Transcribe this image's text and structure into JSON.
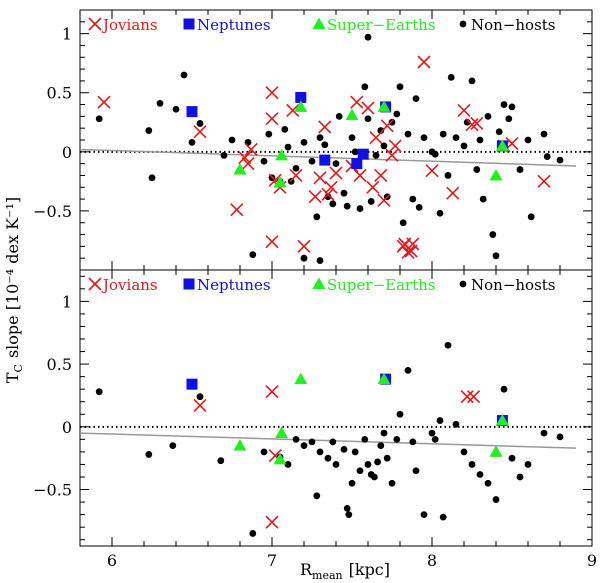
{
  "chart_data": {
    "type": "scatter",
    "xlabel": "R",
    "xlabel_sub": "mean",
    "xlabel_unit": "[kpc]",
    "ylabel": "T",
    "ylabel_sub": "C",
    "ylabel_unit": "slope [10⁻⁴ dex K⁻¹]",
    "xlim": [
      5.8,
      9.0
    ],
    "xticks": [
      "6",
      "7",
      "8",
      "9"
    ],
    "xtick_values": [
      6,
      7,
      8,
      9
    ],
    "colors": {
      "jovian": "#e31a1c",
      "neptune": "#1010e0",
      "superearth": "#22ee22",
      "nonhost": "#000000",
      "fit": "#999999"
    },
    "legend": [
      {
        "name": "Jovians",
        "marker": "cross",
        "color": "#e31a1c"
      },
      {
        "name": "Neptunes",
        "marker": "square",
        "color": "#1010e0"
      },
      {
        "name": "Super−Earths",
        "marker": "triangle",
        "color": "#22ee22"
      },
      {
        "name": "Non−hosts",
        "marker": "circle",
        "color": "#000000"
      }
    ],
    "panels": [
      {
        "name": "top",
        "ylim": [
          -1.0,
          1.2
        ],
        "yticks": [
          "1",
          "0.5",
          "0",
          "−0.5"
        ],
        "ytick_values": [
          1,
          0.5,
          0,
          -0.5
        ],
        "zero_line": 0,
        "fit_line": {
          "x": [
            5.8,
            8.9
          ],
          "y": [
            0.02,
            -0.12
          ]
        },
        "series": [
          {
            "name": "Jovians",
            "points": [
              [
                5.95,
                0.42
              ],
              [
                6.55,
                0.17
              ],
              [
                6.78,
                -0.49
              ],
              [
                6.83,
                -0.05
              ],
              [
                6.85,
                -0.1
              ],
              [
                6.87,
                0.02
              ],
              [
                7.0,
                0.5
              ],
              [
                7.0,
                0.28
              ],
              [
                7.0,
                -0.76
              ],
              [
                7.02,
                -0.24
              ],
              [
                7.05,
                -0.3
              ],
              [
                7.13,
                0.35
              ],
              [
                7.15,
                -0.2
              ],
              [
                7.2,
                -0.8
              ],
              [
                7.27,
                -0.38
              ],
              [
                7.3,
                -0.22
              ],
              [
                7.33,
                0.21
              ],
              [
                7.35,
                -0.36
              ],
              [
                7.37,
                -0.3
              ],
              [
                7.4,
                -0.18
              ],
              [
                7.5,
                -0.12
              ],
              [
                7.53,
                0.42
              ],
              [
                7.55,
                -0.2
              ],
              [
                7.6,
                0.37
              ],
              [
                7.63,
                -0.3
              ],
              [
                7.65,
                0.12
              ],
              [
                7.68,
                -0.2
              ],
              [
                7.7,
                -0.41
              ],
              [
                7.72,
                0.22
              ],
              [
                7.75,
                -0.03
              ],
              [
                7.77,
                0.05
              ],
              [
                7.82,
                -0.8
              ],
              [
                7.83,
                -0.78
              ],
              [
                7.85,
                -0.85
              ],
              [
                7.87,
                -0.84
              ],
              [
                7.88,
                -0.78
              ],
              [
                7.95,
                0.76
              ],
              [
                8.0,
                -0.16
              ],
              [
                8.13,
                -0.35
              ],
              [
                8.2,
                0.35
              ],
              [
                8.25,
                0.23
              ],
              [
                8.28,
                0.24
              ],
              [
                8.45,
                0.05
              ],
              [
                8.5,
                0.07
              ],
              [
                8.7,
                -0.25
              ]
            ]
          },
          {
            "name": "Neptunes",
            "points": [
              [
                6.5,
                0.34
              ],
              [
                7.18,
                0.46
              ],
              [
                7.33,
                -0.07
              ],
              [
                7.53,
                -0.1
              ],
              [
                7.57,
                -0.02
              ],
              [
                7.71,
                0.38
              ],
              [
                8.44,
                0.05
              ]
            ]
          },
          {
            "name": "Super−Earths",
            "points": [
              [
                6.8,
                -0.15
              ],
              [
                7.06,
                -0.03
              ],
              [
                7.05,
                -0.26
              ],
              [
                7.18,
                0.38
              ],
              [
                7.5,
                0.31
              ],
              [
                7.7,
                0.38
              ],
              [
                8.4,
                -0.2
              ],
              [
                8.44,
                0.05
              ]
            ]
          },
          {
            "name": "Non−hosts",
            "points": [
              [
                5.92,
                0.28
              ],
              [
                6.23,
                0.18
              ],
              [
                6.25,
                -0.22
              ],
              [
                6.3,
                0.41
              ],
              [
                6.4,
                0.36
              ],
              [
                6.45,
                0.65
              ],
              [
                6.5,
                0.08
              ],
              [
                6.55,
                0.24
              ],
              [
                6.7,
                -0.03
              ],
              [
                6.75,
                0.1
              ],
              [
                6.85,
                0.08
              ],
              [
                6.88,
                -0.87
              ],
              [
                6.95,
                -0.08
              ],
              [
                6.98,
                0.15
              ],
              [
                7.0,
                -0.22
              ],
              [
                7.05,
                -0.25
              ],
              [
                7.08,
                0.19
              ],
              [
                7.1,
                0.04
              ],
              [
                7.12,
                -0.25
              ],
              [
                7.15,
                -0.14
              ],
              [
                7.2,
                -0.9
              ],
              [
                7.2,
                0.08
              ],
              [
                7.25,
                -0.08
              ],
              [
                7.28,
                -0.55
              ],
              [
                7.3,
                -0.92
              ],
              [
                7.3,
                0.12
              ],
              [
                7.33,
                0.06
              ],
              [
                7.35,
                -0.38
              ],
              [
                7.38,
                -0.44
              ],
              [
                7.4,
                -0.1
              ],
              [
                7.42,
                0.3
              ],
              [
                7.45,
                -0.35
              ],
              [
                7.47,
                -0.46
              ],
              [
                7.5,
                0.12
              ],
              [
                7.52,
                0.0
              ],
              [
                7.55,
                -0.48
              ],
              [
                7.58,
                0.55
              ],
              [
                7.6,
                0.97
              ],
              [
                7.6,
                0.28
              ],
              [
                7.62,
                -0.42
              ],
              [
                7.65,
                -0.03
              ],
              [
                7.68,
                0.18
              ],
              [
                7.7,
                0.05
              ],
              [
                7.72,
                -0.38
              ],
              [
                7.75,
                0.25
              ],
              [
                7.78,
                0.32
              ],
              [
                7.8,
                0.55
              ],
              [
                7.82,
                -0.6
              ],
              [
                7.85,
                0.15
              ],
              [
                7.88,
                -0.4
              ],
              [
                7.9,
                0.45
              ],
              [
                7.92,
                -0.47
              ],
              [
                7.95,
                0.12
              ],
              [
                8.0,
                0.0
              ],
              [
                8.02,
                -0.02
              ],
              [
                8.05,
                -0.52
              ],
              [
                8.07,
                0.15
              ],
              [
                8.1,
                -0.2
              ],
              [
                8.12,
                0.63
              ],
              [
                8.15,
                0.12
              ],
              [
                8.2,
                0.05
              ],
              [
                8.22,
                0.25
              ],
              [
                8.25,
                0.6
              ],
              [
                8.28,
                -0.15
              ],
              [
                8.3,
                0.1
              ],
              [
                8.32,
                -0.4
              ],
              [
                8.35,
                0.3
              ],
              [
                8.38,
                -0.7
              ],
              [
                8.4,
                -0.88
              ],
              [
                8.42,
                0.17
              ],
              [
                8.45,
                0.4
              ],
              [
                8.48,
                0.28
              ],
              [
                8.5,
                0.38
              ],
              [
                8.55,
                -0.15
              ],
              [
                8.6,
                0.1
              ],
              [
                8.62,
                -0.55
              ],
              [
                8.7,
                0.15
              ],
              [
                8.72,
                -0.04
              ],
              [
                8.8,
                -0.07
              ]
            ]
          }
        ]
      },
      {
        "name": "bottom",
        "ylim": [
          -0.95,
          1.25
        ],
        "yticks": [
          "1",
          "0.5",
          "0",
          "−0.5"
        ],
        "ytick_values": [
          1,
          0.5,
          0,
          -0.5
        ],
        "zero_line": 0,
        "fit_line": {
          "x": [
            5.8,
            8.9
          ],
          "y": [
            -0.05,
            -0.17
          ]
        },
        "series": [
          {
            "name": "Jovians",
            "points": [
              [
                6.55,
                0.17
              ],
              [
                7.0,
                0.28
              ],
              [
                7.02,
                -0.23
              ],
              [
                7.0,
                -0.76
              ],
              [
                8.22,
                0.24
              ],
              [
                8.26,
                0.24
              ]
            ]
          },
          {
            "name": "Neptunes",
            "points": [
              [
                6.5,
                0.34
              ],
              [
                7.71,
                0.38
              ],
              [
                8.44,
                0.05
              ]
            ]
          },
          {
            "name": "Super−Earths",
            "points": [
              [
                6.8,
                -0.15
              ],
              [
                7.06,
                -0.05
              ],
              [
                7.05,
                -0.26
              ],
              [
                7.18,
                0.38
              ],
              [
                7.7,
                0.38
              ],
              [
                8.4,
                -0.2
              ],
              [
                8.44,
                0.05
              ]
            ]
          },
          {
            "name": "Non−hosts",
            "points": [
              [
                5.92,
                0.28
              ],
              [
                6.23,
                -0.22
              ],
              [
                6.38,
                -0.15
              ],
              [
                6.55,
                0.24
              ],
              [
                6.68,
                -0.27
              ],
              [
                6.88,
                -0.85
              ],
              [
                6.95,
                -0.2
              ],
              [
                7.05,
                -0.24
              ],
              [
                7.1,
                -0.3
              ],
              [
                7.15,
                -0.1
              ],
              [
                7.2,
                -0.15
              ],
              [
                7.25,
                -0.12
              ],
              [
                7.28,
                -0.55
              ],
              [
                7.3,
                -0.2
              ],
              [
                7.35,
                -0.25
              ],
              [
                7.38,
                -0.12
              ],
              [
                7.4,
                -0.3
              ],
              [
                7.45,
                -0.18
              ],
              [
                7.47,
                -0.65
              ],
              [
                7.48,
                -0.7
              ],
              [
                7.5,
                -0.45
              ],
              [
                7.52,
                -0.2
              ],
              [
                7.55,
                -0.35
              ],
              [
                7.58,
                -0.1
              ],
              [
                7.6,
                -0.3
              ],
              [
                7.62,
                -0.38
              ],
              [
                7.64,
                -0.4
              ],
              [
                7.66,
                -0.28
              ],
              [
                7.68,
                -0.15
              ],
              [
                7.7,
                -0.05
              ],
              [
                7.72,
                -0.25
              ],
              [
                7.75,
                -0.45
              ],
              [
                7.78,
                -0.1
              ],
              [
                7.8,
                0.1
              ],
              [
                7.85,
                0.45
              ],
              [
                7.88,
                -0.12
              ],
              [
                7.9,
                -0.35
              ],
              [
                7.95,
                -0.7
              ],
              [
                8.0,
                -0.05
              ],
              [
                8.02,
                -0.1
              ],
              [
                8.05,
                0.05
              ],
              [
                8.07,
                -0.72
              ],
              [
                8.1,
                0.65
              ],
              [
                8.15,
                0.02
              ],
              [
                8.2,
                -0.2
              ],
              [
                8.25,
                -0.3
              ],
              [
                8.3,
                -0.38
              ],
              [
                8.35,
                -0.45
              ],
              [
                8.4,
                -0.58
              ],
              [
                8.45,
                0.3
              ],
              [
                8.5,
                -0.25
              ],
              [
                8.55,
                -0.4
              ],
              [
                8.6,
                -0.3
              ],
              [
                8.7,
                -0.05
              ],
              [
                8.8,
                -0.08
              ]
            ]
          }
        ]
      }
    ]
  }
}
